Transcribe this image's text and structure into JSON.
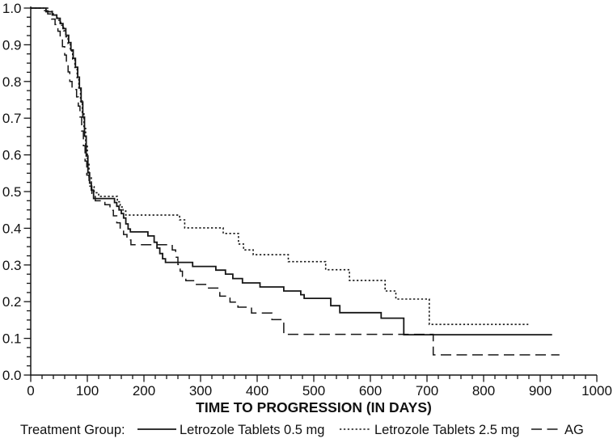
{
  "chart_data": {
    "type": "line",
    "subtype": "kaplan-meier-step",
    "title": "",
    "xlabel": "TIME TO PROGRESSION (IN DAYS)",
    "ylabel": "",
    "legend_title": "Treatment Group:",
    "legend_position": "bottom",
    "grid": false,
    "xlim": [
      0,
      1000
    ],
    "ylim": [
      0.0,
      1.0
    ],
    "x_major_tick_interval": 100,
    "x_minor_tick_interval": 20,
    "y_major_tick_interval": 0.1,
    "y_minor_tick_interval": 0.025,
    "x_tick_labels": [
      "0",
      "100",
      "200",
      "300",
      "400",
      "500",
      "600",
      "700",
      "800",
      "900",
      "1000"
    ],
    "y_tick_labels": [
      "0.0",
      "0.1",
      "0.2",
      "0.3",
      "0.4",
      "0.5",
      "0.6",
      "0.7",
      "0.8",
      "0.9",
      "1.0"
    ],
    "line_color": "#161616",
    "series": [
      {
        "name": "Letrozole Tablets 0.5 mg",
        "line_style": "solid",
        "color": "#161616",
        "points": [
          [
            0,
            1.0
          ],
          [
            27,
            0.99
          ],
          [
            38,
            0.981
          ],
          [
            46,
            0.972
          ],
          [
            52,
            0.958
          ],
          [
            57,
            0.944
          ],
          [
            62,
            0.926
          ],
          [
            67,
            0.906
          ],
          [
            71,
            0.886
          ],
          [
            75,
            0.863
          ],
          [
            79,
            0.839
          ],
          [
            83,
            0.812
          ],
          [
            86,
            0.782
          ],
          [
            89,
            0.744
          ],
          [
            92,
            0.703
          ],
          [
            95,
            0.651
          ],
          [
            98,
            0.597
          ],
          [
            101,
            0.551
          ],
          [
            104,
            0.523
          ],
          [
            107,
            0.504
          ],
          [
            111,
            0.481
          ],
          [
            148,
            0.47
          ],
          [
            152,
            0.46
          ],
          [
            156,
            0.45
          ],
          [
            160,
            0.44
          ],
          [
            164,
            0.428
          ],
          [
            168,
            0.412
          ],
          [
            172,
            0.398
          ],
          [
            176,
            0.39
          ],
          [
            207,
            0.379
          ],
          [
            218,
            0.362
          ],
          [
            223,
            0.346
          ],
          [
            228,
            0.331
          ],
          [
            233,
            0.317
          ],
          [
            238,
            0.307
          ],
          [
            286,
            0.296
          ],
          [
            327,
            0.286
          ],
          [
            344,
            0.275
          ],
          [
            357,
            0.263
          ],
          [
            374,
            0.251
          ],
          [
            405,
            0.24
          ],
          [
            447,
            0.229
          ],
          [
            477,
            0.219
          ],
          [
            483,
            0.209
          ],
          [
            530,
            0.189
          ],
          [
            546,
            0.17
          ],
          [
            619,
            0.155
          ],
          [
            659,
            0.11
          ],
          [
            921,
            0.11
          ]
        ]
      },
      {
        "name": "Letrozole Tablets 2.5 mg",
        "line_style": "dotted",
        "color": "#161616",
        "points": [
          [
            0,
            1.0
          ],
          [
            30,
            0.991
          ],
          [
            40,
            0.981
          ],
          [
            47,
            0.967
          ],
          [
            53,
            0.953
          ],
          [
            58,
            0.938
          ],
          [
            62,
            0.922
          ],
          [
            66,
            0.903
          ],
          [
            70,
            0.883
          ],
          [
            74,
            0.861
          ],
          [
            78,
            0.838
          ],
          [
            82,
            0.808
          ],
          [
            85,
            0.778
          ],
          [
            88,
            0.747
          ],
          [
            91,
            0.712
          ],
          [
            94,
            0.672
          ],
          [
            97,
            0.628
          ],
          [
            100,
            0.58
          ],
          [
            103,
            0.54
          ],
          [
            107,
            0.513
          ],
          [
            112,
            0.497
          ],
          [
            120,
            0.487
          ],
          [
            153,
            0.472
          ],
          [
            158,
            0.458
          ],
          [
            163,
            0.447
          ],
          [
            168,
            0.436
          ],
          [
            263,
            0.423
          ],
          [
            272,
            0.401
          ],
          [
            340,
            0.386
          ],
          [
            367,
            0.357
          ],
          [
            376,
            0.341
          ],
          [
            393,
            0.328
          ],
          [
            455,
            0.309
          ],
          [
            521,
            0.287
          ],
          [
            563,
            0.258
          ],
          [
            626,
            0.229
          ],
          [
            645,
            0.207
          ],
          [
            704,
            0.138
          ],
          [
            879,
            0.138
          ]
        ]
      },
      {
        "name": "AG",
        "line_style": "long-dash",
        "color": "#161616",
        "points": [
          [
            0,
            1.0
          ],
          [
            22,
            0.993
          ],
          [
            30,
            0.984
          ],
          [
            37,
            0.97
          ],
          [
            43,
            0.955
          ],
          [
            48,
            0.937
          ],
          [
            52,
            0.916
          ],
          [
            56,
            0.895
          ],
          [
            60,
            0.872
          ],
          [
            63,
            0.85
          ],
          [
            66,
            0.826
          ],
          [
            69,
            0.8
          ],
          [
            73,
            0.778
          ],
          [
            81,
            0.758
          ],
          [
            84,
            0.733
          ],
          [
            87,
            0.703
          ],
          [
            90,
            0.665
          ],
          [
            93,
            0.625
          ],
          [
            96,
            0.583
          ],
          [
            99,
            0.545
          ],
          [
            103,
            0.515
          ],
          [
            108,
            0.495
          ],
          [
            114,
            0.475
          ],
          [
            131,
            0.464
          ],
          [
            140,
            0.449
          ],
          [
            146,
            0.434
          ],
          [
            152,
            0.415
          ],
          [
            158,
            0.398
          ],
          [
            164,
            0.383
          ],
          [
            170,
            0.368
          ],
          [
            177,
            0.355
          ],
          [
            250,
            0.341
          ],
          [
            256,
            0.321
          ],
          [
            260,
            0.301
          ],
          [
            264,
            0.283
          ],
          [
            268,
            0.269
          ],
          [
            274,
            0.257
          ],
          [
            291,
            0.247
          ],
          [
            312,
            0.237
          ],
          [
            334,
            0.215
          ],
          [
            352,
            0.199
          ],
          [
            366,
            0.185
          ],
          [
            390,
            0.169
          ],
          [
            426,
            0.151
          ],
          [
            447,
            0.111
          ],
          [
            711,
            0.055
          ],
          [
            934,
            0.055
          ]
        ]
      }
    ]
  }
}
